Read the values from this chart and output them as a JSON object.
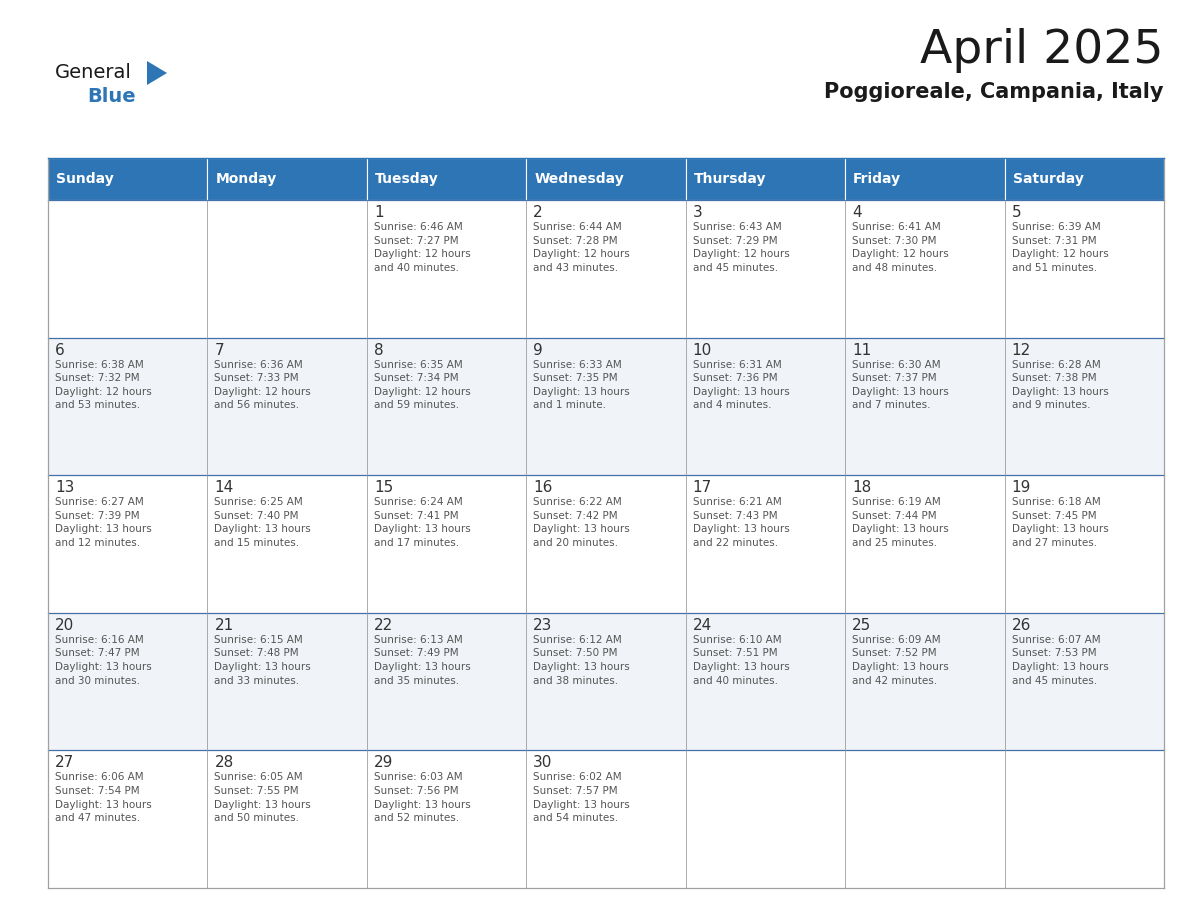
{
  "title": "April 2025",
  "subtitle": "Poggioreale, Campania, Italy",
  "header_bg": "#2E75B6",
  "header_text_color": "#FFFFFF",
  "day_names": [
    "Sunday",
    "Monday",
    "Tuesday",
    "Wednesday",
    "Thursday",
    "Friday",
    "Saturday"
  ],
  "row_bg_even": "#FFFFFF",
  "row_bg_odd": "#F0F4F8",
  "cell_border_color": "#A0A0A0",
  "title_color": "#1A1A1A",
  "subtitle_color": "#1A1A1A",
  "day_number_color": "#333333",
  "text_color": "#555555",
  "general_text_color": "#1A1A1A",
  "general_blue_color": "#2E75B6",
  "calendar_data": [
    [
      {
        "day": "",
        "info": ""
      },
      {
        "day": "",
        "info": ""
      },
      {
        "day": "1",
        "info": "Sunrise: 6:46 AM\nSunset: 7:27 PM\nDaylight: 12 hours\nand 40 minutes."
      },
      {
        "day": "2",
        "info": "Sunrise: 6:44 AM\nSunset: 7:28 PM\nDaylight: 12 hours\nand 43 minutes."
      },
      {
        "day": "3",
        "info": "Sunrise: 6:43 AM\nSunset: 7:29 PM\nDaylight: 12 hours\nand 45 minutes."
      },
      {
        "day": "4",
        "info": "Sunrise: 6:41 AM\nSunset: 7:30 PM\nDaylight: 12 hours\nand 48 minutes."
      },
      {
        "day": "5",
        "info": "Sunrise: 6:39 AM\nSunset: 7:31 PM\nDaylight: 12 hours\nand 51 minutes."
      }
    ],
    [
      {
        "day": "6",
        "info": "Sunrise: 6:38 AM\nSunset: 7:32 PM\nDaylight: 12 hours\nand 53 minutes."
      },
      {
        "day": "7",
        "info": "Sunrise: 6:36 AM\nSunset: 7:33 PM\nDaylight: 12 hours\nand 56 minutes."
      },
      {
        "day": "8",
        "info": "Sunrise: 6:35 AM\nSunset: 7:34 PM\nDaylight: 12 hours\nand 59 minutes."
      },
      {
        "day": "9",
        "info": "Sunrise: 6:33 AM\nSunset: 7:35 PM\nDaylight: 13 hours\nand 1 minute."
      },
      {
        "day": "10",
        "info": "Sunrise: 6:31 AM\nSunset: 7:36 PM\nDaylight: 13 hours\nand 4 minutes."
      },
      {
        "day": "11",
        "info": "Sunrise: 6:30 AM\nSunset: 7:37 PM\nDaylight: 13 hours\nand 7 minutes."
      },
      {
        "day": "12",
        "info": "Sunrise: 6:28 AM\nSunset: 7:38 PM\nDaylight: 13 hours\nand 9 minutes."
      }
    ],
    [
      {
        "day": "13",
        "info": "Sunrise: 6:27 AM\nSunset: 7:39 PM\nDaylight: 13 hours\nand 12 minutes."
      },
      {
        "day": "14",
        "info": "Sunrise: 6:25 AM\nSunset: 7:40 PM\nDaylight: 13 hours\nand 15 minutes."
      },
      {
        "day": "15",
        "info": "Sunrise: 6:24 AM\nSunset: 7:41 PM\nDaylight: 13 hours\nand 17 minutes."
      },
      {
        "day": "16",
        "info": "Sunrise: 6:22 AM\nSunset: 7:42 PM\nDaylight: 13 hours\nand 20 minutes."
      },
      {
        "day": "17",
        "info": "Sunrise: 6:21 AM\nSunset: 7:43 PM\nDaylight: 13 hours\nand 22 minutes."
      },
      {
        "day": "18",
        "info": "Sunrise: 6:19 AM\nSunset: 7:44 PM\nDaylight: 13 hours\nand 25 minutes."
      },
      {
        "day": "19",
        "info": "Sunrise: 6:18 AM\nSunset: 7:45 PM\nDaylight: 13 hours\nand 27 minutes."
      }
    ],
    [
      {
        "day": "20",
        "info": "Sunrise: 6:16 AM\nSunset: 7:47 PM\nDaylight: 13 hours\nand 30 minutes."
      },
      {
        "day": "21",
        "info": "Sunrise: 6:15 AM\nSunset: 7:48 PM\nDaylight: 13 hours\nand 33 minutes."
      },
      {
        "day": "22",
        "info": "Sunrise: 6:13 AM\nSunset: 7:49 PM\nDaylight: 13 hours\nand 35 minutes."
      },
      {
        "day": "23",
        "info": "Sunrise: 6:12 AM\nSunset: 7:50 PM\nDaylight: 13 hours\nand 38 minutes."
      },
      {
        "day": "24",
        "info": "Sunrise: 6:10 AM\nSunset: 7:51 PM\nDaylight: 13 hours\nand 40 minutes."
      },
      {
        "day": "25",
        "info": "Sunrise: 6:09 AM\nSunset: 7:52 PM\nDaylight: 13 hours\nand 42 minutes."
      },
      {
        "day": "26",
        "info": "Sunrise: 6:07 AM\nSunset: 7:53 PM\nDaylight: 13 hours\nand 45 minutes."
      }
    ],
    [
      {
        "day": "27",
        "info": "Sunrise: 6:06 AM\nSunset: 7:54 PM\nDaylight: 13 hours\nand 47 minutes."
      },
      {
        "day": "28",
        "info": "Sunrise: 6:05 AM\nSunset: 7:55 PM\nDaylight: 13 hours\nand 50 minutes."
      },
      {
        "day": "29",
        "info": "Sunrise: 6:03 AM\nSunset: 7:56 PM\nDaylight: 13 hours\nand 52 minutes."
      },
      {
        "day": "30",
        "info": "Sunrise: 6:02 AM\nSunset: 7:57 PM\nDaylight: 13 hours\nand 54 minutes."
      },
      {
        "day": "",
        "info": ""
      },
      {
        "day": "",
        "info": ""
      },
      {
        "day": "",
        "info": ""
      }
    ]
  ],
  "logo_general_fontsize": 14,
  "logo_blue_fontsize": 14,
  "title_fontsize": 34,
  "subtitle_fontsize": 15,
  "header_fontsize": 10,
  "day_num_fontsize": 11,
  "cell_text_fontsize": 7.5
}
